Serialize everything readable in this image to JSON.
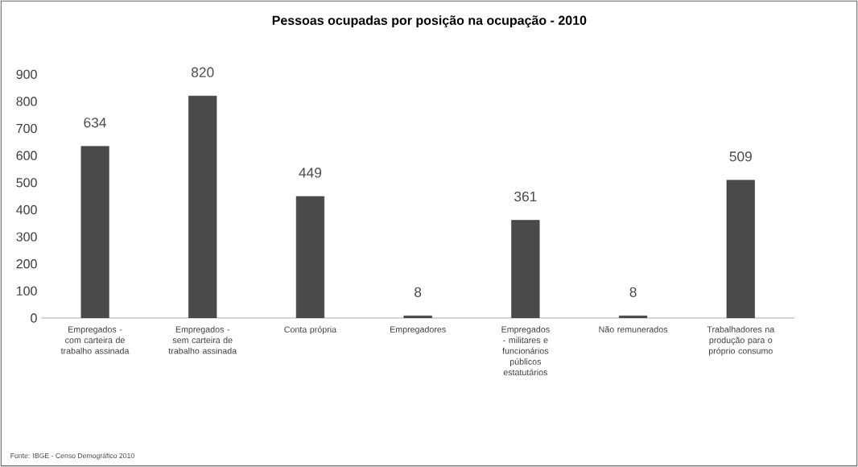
{
  "chart_data": {
    "type": "bar",
    "title": "Pessoas ocupadas por posição na ocupação - 2010",
    "categories": [
      "Empregados - com carteira de trabalho assinada",
      "Empregados - sem carteira de trabalho assinada",
      "Conta própria",
      "Empregadores",
      "Empregados - militares e funcionários públicos estatutários",
      "Não remunerados",
      "Trabalhadores na produção para o próprio consumo"
    ],
    "values": [
      634,
      820,
      449,
      8,
      361,
      8,
      509
    ],
    "color": "#4a4a4a",
    "ylim": [
      0,
      900
    ],
    "yticks": [
      0,
      100,
      200,
      300,
      400,
      500,
      600,
      700,
      800,
      900
    ],
    "data_labels": true,
    "grid": false,
    "annotations": [
      "Fonte: IBGE - Censo Demográfico 2010"
    ]
  }
}
